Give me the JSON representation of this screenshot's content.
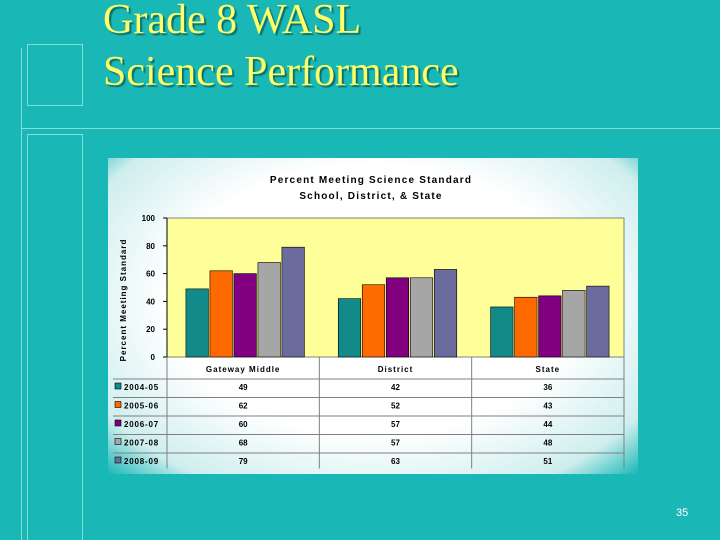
{
  "slide": {
    "title_line1": "Grade 8 WASL",
    "title_line2": "Science Performance",
    "page_number": "35"
  },
  "chart_data": {
    "type": "bar",
    "title": "Percent Meeting Science Standard",
    "subtitle": "School, District, & State",
    "ylabel": "Percent Meeting Standard",
    "xlabel": "",
    "ylim": [
      0,
      100
    ],
    "yticks": [
      0,
      20,
      40,
      60,
      80,
      100
    ],
    "grid": false,
    "legend": "data-table",
    "categories": [
      "Gateway Middle",
      "District",
      "State"
    ],
    "series": [
      {
        "name": "2004-05",
        "color": "#128a8a",
        "values": [
          49,
          42,
          36
        ]
      },
      {
        "name": "2005-06",
        "color": "#ff6a00",
        "values": [
          62,
          52,
          43
        ]
      },
      {
        "name": "2006-07",
        "color": "#800080",
        "values": [
          60,
          57,
          44
        ]
      },
      {
        "name": "2007-08",
        "color": "#a6a6a6",
        "values": [
          68,
          57,
          48
        ]
      },
      {
        "name": "2008-09",
        "color": "#6b6b9e",
        "values": [
          79,
          63,
          51
        ]
      }
    ],
    "plot_background": "#ffff99"
  }
}
